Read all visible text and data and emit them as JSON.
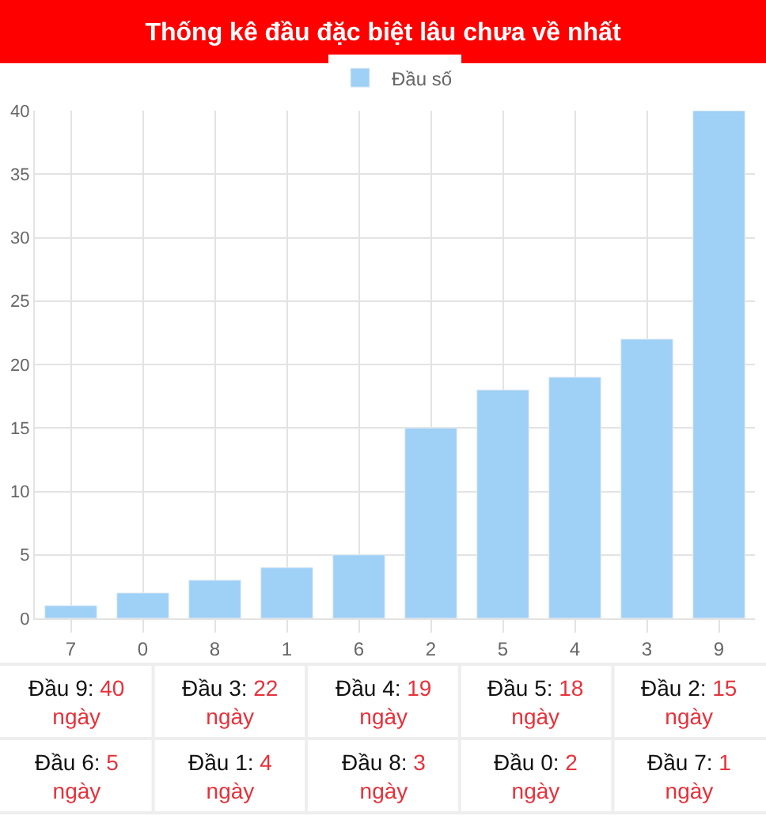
{
  "chart_data": {
    "type": "bar",
    "title": "Thống kê đầu đặc biệt lâu chưa về nhất",
    "categories": [
      "7",
      "0",
      "8",
      "1",
      "6",
      "2",
      "5",
      "4",
      "3",
      "9"
    ],
    "series": [
      {
        "name": "Đầu số",
        "color": "#9fd0f5",
        "values": [
          1,
          2,
          3,
          4,
          5,
          15,
          18,
          19,
          22,
          40
        ]
      }
    ],
    "ylim": [
      0,
      40
    ],
    "yticks": [
      0,
      5,
      10,
      15,
      20,
      25,
      30,
      35,
      40
    ],
    "grid": true,
    "legend": "top",
    "annotations": [
      "Đầu 9: 40 ngày",
      "Đầu 3: 22 ngày",
      "Đầu 4: 19 ngày",
      "Đầu 5: 18 ngày",
      "Đầu 2: 15 ngày",
      "Đầu 6: 5 ngày",
      "Đầu 1: 4 ngày",
      "Đầu 8: 3 ngày",
      "Đầu 0: 2 ngày",
      "Đầu 7: 1 ngày"
    ]
  }
}
